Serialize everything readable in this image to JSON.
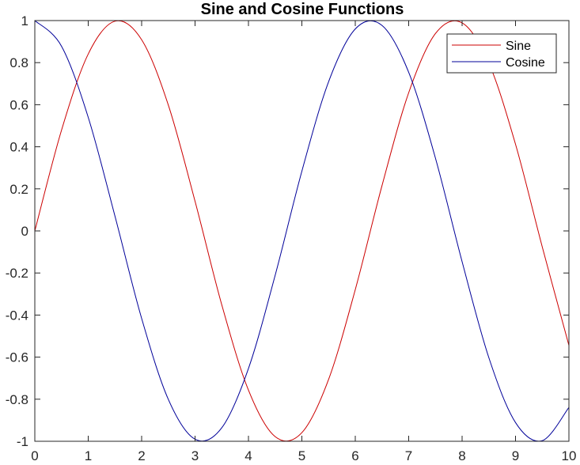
{
  "chart_data": {
    "type": "line",
    "title": "Sine and Cosine Functions",
    "xlabel": "",
    "ylabel": "",
    "xlim": [
      0,
      10
    ],
    "ylim": [
      -1,
      1
    ],
    "xticks": [
      0,
      1,
      2,
      3,
      4,
      5,
      6,
      7,
      8,
      9,
      10
    ],
    "yticks": [
      1,
      0.8,
      0.6,
      0.4,
      0.2,
      0,
      -0.2,
      -0.4,
      -0.6,
      -0.8,
      -1
    ],
    "xtick_labels": [
      "0",
      "1",
      "2",
      "3",
      "4",
      "5",
      "6",
      "7",
      "8",
      "9",
      "10"
    ],
    "ytick_labels": [
      "1",
      "0.8",
      "0.6",
      "0.4",
      "0.2",
      "0",
      "-0.2",
      "-0.4",
      "-0.6",
      "-0.8",
      "-1"
    ],
    "grid": false,
    "legend_position": "top-right",
    "x": [
      0,
      0.5,
      1,
      1.5,
      2,
      2.5,
      3,
      3.5,
      4,
      4.5,
      5,
      5.5,
      6,
      6.5,
      7,
      7.5,
      8,
      8.5,
      9,
      9.5,
      10
    ],
    "series": [
      {
        "name": "Sine",
        "color": "#cc0000",
        "values": [
          0,
          0.479,
          0.841,
          0.997,
          0.909,
          0.598,
          0.141,
          -0.351,
          -0.757,
          -0.978,
          -0.959,
          -0.706,
          -0.279,
          0.215,
          0.657,
          0.938,
          0.989,
          0.798,
          0.412,
          -0.075,
          -0.544
        ]
      },
      {
        "name": "Cosine",
        "color": "#000099",
        "values": [
          1,
          0.878,
          0.54,
          0.071,
          -0.416,
          -0.801,
          -0.99,
          -0.936,
          -0.654,
          -0.211,
          0.284,
          0.709,
          0.96,
          0.977,
          0.754,
          0.347,
          -0.146,
          -0.602,
          -0.911,
          -0.997,
          -0.839
        ]
      }
    ]
  }
}
